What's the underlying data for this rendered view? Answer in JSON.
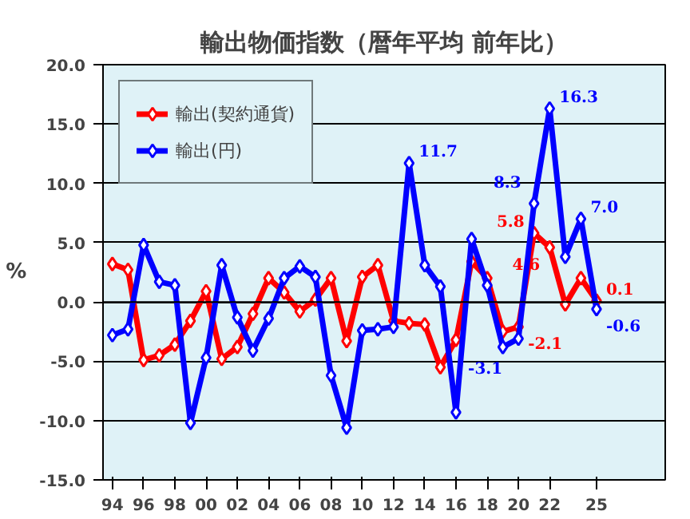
{
  "chart_data": {
    "type": "line",
    "title": "輸出物価指数（暦年平均 前年比）",
    "ylabel": "%",
    "x": [
      1994,
      1995,
      1996,
      1997,
      1998,
      1999,
      2000,
      2001,
      2002,
      2003,
      2004,
      2005,
      2006,
      2007,
      2008,
      2009,
      2010,
      2011,
      2012,
      2013,
      2014,
      2015,
      2016,
      2017,
      2018,
      2019,
      2020,
      2021,
      2022,
      2023,
      2024,
      2025
    ],
    "series": [
      {
        "name": "輸出(契約通貨)",
        "color": "#ff0000",
        "values": [
          3.2,
          2.7,
          -4.9,
          -4.5,
          -3.6,
          -1.6,
          0.9,
          -4.8,
          -3.8,
          -1.0,
          2.0,
          0.8,
          -0.8,
          0.2,
          2.0,
          -3.3,
          2.1,
          3.1,
          -1.6,
          -1.8,
          -1.9,
          -5.5,
          -3.2,
          3.4,
          2.0,
          -2.5,
          -2.1,
          5.8,
          4.6,
          -0.2,
          2.0,
          0.1
        ],
        "value_labels": [
          null,
          null,
          null,
          null,
          null,
          null,
          null,
          null,
          null,
          null,
          null,
          null,
          null,
          null,
          null,
          null,
          null,
          null,
          null,
          null,
          null,
          null,
          null,
          null,
          null,
          null,
          "-2.1",
          "5.8",
          "4.6",
          null,
          null,
          "0.1"
        ]
      },
      {
        "name": "輸出(円)",
        "color": "#0000ff",
        "values": [
          -2.8,
          -2.3,
          4.8,
          1.7,
          1.4,
          -10.2,
          -4.7,
          3.1,
          -1.3,
          -4.1,
          -1.4,
          2.0,
          3.0,
          2.1,
          -6.2,
          -10.6,
          -2.4,
          -2.3,
          -2.1,
          11.7,
          3.1,
          1.3,
          -9.3,
          5.3,
          1.4,
          -3.8,
          -3.1,
          8.3,
          16.3,
          3.8,
          7.0,
          -0.6
        ],
        "value_labels": [
          null,
          null,
          null,
          null,
          null,
          null,
          null,
          null,
          null,
          null,
          null,
          null,
          null,
          null,
          null,
          null,
          null,
          null,
          null,
          "11.7",
          null,
          null,
          null,
          null,
          null,
          null,
          "-3.1",
          "8.3",
          "16.3",
          null,
          "7.0",
          "-0.6"
        ]
      }
    ],
    "xlim": [
      1993.4,
      2029.4
    ],
    "xticks": [
      {
        "value": 1994,
        "label": "94"
      },
      {
        "value": 1996,
        "label": "96"
      },
      {
        "value": 1998,
        "label": "98"
      },
      {
        "value": 2000,
        "label": "00"
      },
      {
        "value": 2002,
        "label": "02"
      },
      {
        "value": 2004,
        "label": "04"
      },
      {
        "value": 2006,
        "label": "06"
      },
      {
        "value": 2008,
        "label": "08"
      },
      {
        "value": 2010,
        "label": "10"
      },
      {
        "value": 2012,
        "label": "12"
      },
      {
        "value": 2014,
        "label": "14"
      },
      {
        "value": 2016,
        "label": "16"
      },
      {
        "value": 2018,
        "label": "18"
      },
      {
        "value": 2020,
        "label": "20"
      },
      {
        "value": 2022,
        "label": "22"
      },
      {
        "value": 2025,
        "label": "25"
      }
    ],
    "ylim": [
      -15,
      20
    ],
    "yticks": [
      {
        "value": -15,
        "label": "-15.0"
      },
      {
        "value": -10,
        "label": "-10.0"
      },
      {
        "value": -5,
        "label": "-5.0"
      },
      {
        "value": 0,
        "label": "0.0"
      },
      {
        "value": 5,
        "label": "5.0"
      },
      {
        "value": 10,
        "label": "10.0"
      },
      {
        "value": 15,
        "label": "15.0"
      },
      {
        "value": 20,
        "label": "20.0"
      }
    ],
    "grid": "y",
    "legend": "top left",
    "marker": "diamond",
    "line_style": "solid"
  }
}
